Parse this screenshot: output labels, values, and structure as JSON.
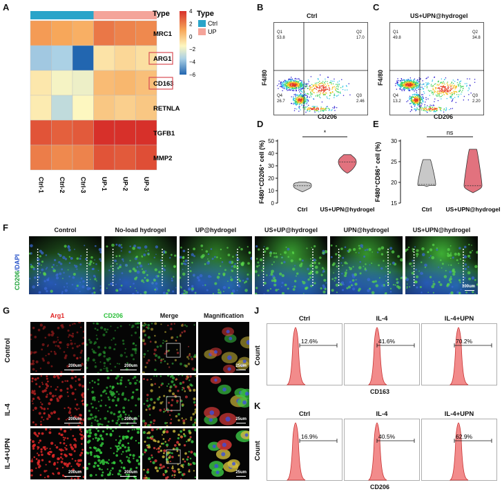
{
  "panels": {
    "A": "A",
    "B": "B",
    "C": "C",
    "D": "D",
    "E": "E",
    "F": "F",
    "G": "G",
    "J": "J",
    "K": "K"
  },
  "heatmap": {
    "type_title": "Type",
    "columns": [
      "Ctrl-1",
      "Ctrl-2",
      "Ctrl-3",
      "UP-1",
      "UP-2",
      "UP-3"
    ],
    "column_types": [
      "Ctrl",
      "Ctrl",
      "Ctrl",
      "UP",
      "UP",
      "UP"
    ],
    "genes": [
      "MRC1",
      "ARG1",
      "CD163",
      "RETNLA",
      "TGFB1",
      "MMP2"
    ],
    "highlighted_genes": [
      "ARG1",
      "CD163"
    ],
    "scale_ticks": [
      "4",
      "2",
      "0",
      "−2",
      "−4",
      "−6"
    ],
    "scale_range": [
      -6,
      4
    ],
    "legend_title": "Type",
    "legend_items": [
      {
        "label": "Ctrl",
        "color": "#2aa4c9"
      },
      {
        "label": "UP",
        "color": "#f4a49a"
      }
    ],
    "values": [
      [
        2.2,
        2.0,
        1.8,
        2.8,
        2.6,
        2.5
      ],
      [
        -2.4,
        -2.0,
        -6.0,
        0.5,
        0.8,
        0.6
      ],
      [
        0.4,
        -0.2,
        -0.4,
        1.5,
        1.6,
        1.4
      ],
      [
        0.3,
        -1.5,
        0.0,
        1.2,
        1.0,
        1.2
      ],
      [
        3.4,
        3.2,
        3.3,
        4.2,
        4.1,
        4.0
      ],
      [
        2.7,
        2.5,
        2.6,
        3.4,
        3.3,
        3.5
      ]
    ]
  },
  "flow_B": {
    "title": "Ctrl",
    "ylabel": "F4/80",
    "xlabel": "CD206",
    "q1_label": "Q1",
    "q1": "53.8",
    "q2_label": "Q2",
    "q2": "17.0",
    "q3_label": "Q3",
    "q3": "2.46",
    "q4_label": "Q4",
    "q4": "26.7"
  },
  "flow_C": {
    "title": "US+UPN@hydrogel",
    "ylabel": "F4/80",
    "xlabel": "CD206",
    "q1_label": "Q1",
    "q1": "49.8",
    "q2_label": "Q2",
    "q2": "34.8",
    "q3_label": "Q3",
    "q3": "2.20",
    "q4_label": "Q4",
    "q4": "13.2"
  },
  "chart_data": [
    {
      "type": "violin",
      "panel": "D",
      "ylabel": "F480⁺CD206⁺ cell (%)",
      "categories": [
        "Ctrl",
        "US+UPN@hydrogel"
      ],
      "ylim": [
        0,
        50
      ],
      "yticks": [
        0,
        10,
        20,
        30,
        40,
        50
      ],
      "significance": "*",
      "series": [
        {
          "category": "Ctrl",
          "min": 9,
          "median": 14,
          "max": 17,
          "color": "#c8c8c8"
        },
        {
          "category": "US+UPN@hydrogel",
          "min": 24,
          "median": 33,
          "max": 39,
          "color": "#e2727e"
        }
      ]
    },
    {
      "type": "violin",
      "panel": "E",
      "ylabel": "F480⁺CD86⁺ cell (%)",
      "categories": [
        "Ctrl",
        "US+UPN@hydrogel"
      ],
      "ylim": [
        15,
        30
      ],
      "yticks": [
        15,
        20,
        25,
        30
      ],
      "significance": "ns",
      "series": [
        {
          "category": "Ctrl",
          "min": 19,
          "median": 19.5,
          "max": 25.5,
          "color": "#c8c8c8"
        },
        {
          "category": "US+UPN@hydrogel",
          "min": 17.5,
          "median": 19.2,
          "max": 28,
          "color": "#e2727e"
        }
      ]
    },
    {
      "type": "histogram",
      "panel": "J",
      "xlabel": "CD163",
      "ylabel": "Count",
      "groups": [
        "Ctrl",
        "IL-4",
        "IL-4+UPN"
      ],
      "percentages": [
        "12.6%",
        "41.6%",
        "70.2%"
      ]
    },
    {
      "type": "histogram",
      "panel": "K",
      "xlabel": "CD206",
      "ylabel": "Count",
      "groups": [
        "Ctrl",
        "IL-4",
        "IL-4+UPN"
      ],
      "percentages": [
        "16.9%",
        "40.5%",
        "62.9%"
      ]
    }
  ],
  "panel_F": {
    "ylabel_a": "CD206",
    "ylabel_b": "/DAPI",
    "columns": [
      "Control",
      "No-load hydrogel",
      "UP@hydrogel",
      "US+UP@hydrogel",
      "UPN@hydrogel",
      "US+UPN@hydrogel"
    ],
    "scalebar": "100um"
  },
  "panel_G": {
    "columns": [
      "Arg1",
      "CD206",
      "Merge",
      "Magnification"
    ],
    "rows": [
      "Control",
      "IL-4",
      "IL-4+UPN"
    ],
    "scalebar_big": "200um",
    "scalebar_small": "25um"
  }
}
